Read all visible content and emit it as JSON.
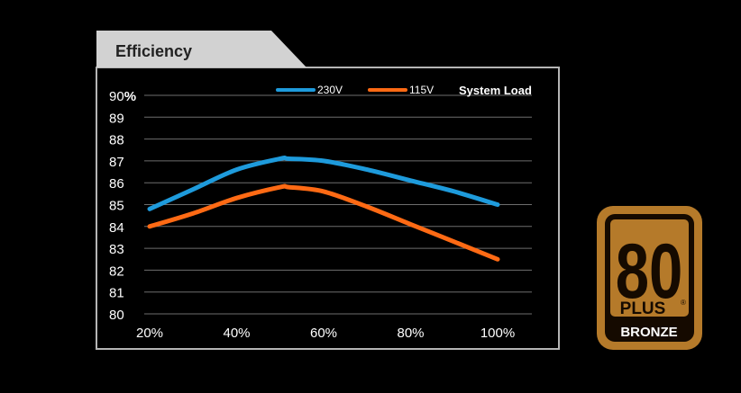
{
  "title": "Efficiency",
  "chart_data": {
    "type": "line",
    "title": "Efficiency",
    "x": [
      20,
      30,
      40,
      50,
      52,
      60,
      70,
      80,
      90,
      100
    ],
    "x_ticks": [
      "20%",
      "40%",
      "60%",
      "80%",
      "100%"
    ],
    "y_ticks": [
      "90",
      "89",
      "88",
      "87",
      "86",
      "85",
      "84",
      "83",
      "82",
      "81",
      "80"
    ],
    "y_top_unit": "%",
    "ylim": [
      80,
      90
    ],
    "xlim": [
      20,
      100
    ],
    "legend_title": "System Load",
    "legend_position": "top",
    "grid": true,
    "series": [
      {
        "name": "230V",
        "color": "#1e9bdc",
        "values": [
          84.8,
          85.7,
          86.6,
          87.1,
          87.1,
          87.0,
          86.6,
          86.1,
          85.6,
          85.0
        ]
      },
      {
        "name": "115V",
        "color": "#ff6a14",
        "values": [
          84.0,
          84.6,
          85.3,
          85.8,
          85.8,
          85.6,
          84.9,
          84.1,
          83.3,
          82.5
        ]
      }
    ]
  },
  "badge": {
    "number": "80",
    "plus": "PLUS",
    "reg": "®",
    "tier": "BRONZE",
    "color": "#b57a2a"
  }
}
